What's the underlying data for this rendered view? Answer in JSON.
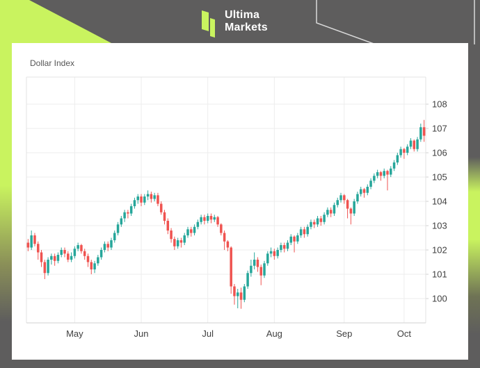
{
  "brand": {
    "line1": "Ultima",
    "line2": "Markets"
  },
  "colors": {
    "background": "#5e5d5d",
    "accent_lime": "#c9f35f",
    "outline": "#d9d9d9",
    "up": "#26a69a",
    "down": "#ef5350",
    "grid": "#ededed",
    "axis_line": "#d2d2d2",
    "label": "#3f3f3f"
  },
  "chart_data": {
    "type": "candlestick",
    "title": "Dollar Index",
    "ylabel": "",
    "xlabel": "",
    "ylim": [
      99.4,
      108.9
    ],
    "grid": true,
    "y_ticks": [
      100,
      101,
      102,
      103,
      104,
      105,
      106,
      107,
      108
    ],
    "x_months": [
      {
        "label": "May",
        "index": 14
      },
      {
        "label": "Jun",
        "index": 34
      },
      {
        "label": "Jul",
        "index": 54
      },
      {
        "label": "Aug",
        "index": 74
      },
      {
        "label": "Sep",
        "index": 95
      },
      {
        "label": "Oct",
        "index": 113
      }
    ],
    "candles_format": [
      "open",
      "high",
      "low",
      "close"
    ],
    "candles": [
      [
        102.3,
        102.45,
        101.95,
        102.1
      ],
      [
        102.1,
        102.8,
        102.0,
        102.6
      ],
      [
        102.6,
        102.7,
        102.15,
        102.25
      ],
      [
        102.25,
        102.35,
        101.6,
        101.9
      ],
      [
        101.9,
        102.0,
        101.3,
        101.5
      ],
      [
        101.5,
        101.6,
        100.8,
        101.05
      ],
      [
        101.05,
        101.7,
        100.95,
        101.6
      ],
      [
        101.6,
        101.85,
        101.4,
        101.75
      ],
      [
        101.75,
        101.85,
        101.35,
        101.55
      ],
      [
        101.55,
        101.9,
        101.45,
        101.8
      ],
      [
        101.8,
        102.1,
        101.7,
        102.0
      ],
      [
        102.0,
        102.1,
        101.7,
        101.85
      ],
      [
        101.85,
        101.95,
        101.5,
        101.6
      ],
      [
        101.6,
        101.9,
        101.5,
        101.75
      ],
      [
        101.75,
        102.15,
        101.65,
        102.05
      ],
      [
        102.05,
        102.3,
        101.95,
        102.2
      ],
      [
        102.2,
        102.25,
        101.85,
        101.95
      ],
      [
        101.95,
        102.05,
        101.6,
        101.75
      ],
      [
        101.75,
        101.85,
        101.3,
        101.5
      ],
      [
        101.5,
        101.6,
        101.0,
        101.2
      ],
      [
        101.2,
        101.55,
        101.05,
        101.45
      ],
      [
        101.45,
        101.8,
        101.35,
        101.7
      ],
      [
        101.7,
        102.1,
        101.6,
        102.0
      ],
      [
        102.0,
        102.35,
        101.9,
        102.25
      ],
      [
        102.25,
        102.35,
        101.95,
        102.1
      ],
      [
        102.1,
        102.5,
        102.0,
        102.4
      ],
      [
        102.4,
        102.8,
        102.3,
        102.7
      ],
      [
        102.7,
        103.15,
        102.6,
        103.05
      ],
      [
        103.05,
        103.4,
        102.95,
        103.3
      ],
      [
        103.3,
        103.65,
        103.15,
        103.55
      ],
      [
        103.55,
        103.65,
        103.3,
        103.5
      ],
      [
        103.5,
        103.9,
        103.4,
        103.8
      ],
      [
        103.8,
        104.15,
        103.7,
        104.05
      ],
      [
        104.05,
        104.3,
        103.9,
        104.2
      ],
      [
        104.2,
        104.3,
        103.8,
        103.95
      ],
      [
        103.95,
        104.3,
        103.85,
        104.2
      ],
      [
        104.2,
        104.45,
        104.05,
        104.3
      ],
      [
        104.3,
        104.4,
        103.95,
        104.1
      ],
      [
        104.1,
        104.35,
        104.0,
        104.25
      ],
      [
        104.25,
        104.35,
        103.8,
        103.9
      ],
      [
        103.9,
        104.0,
        103.45,
        103.55
      ],
      [
        103.55,
        103.65,
        103.05,
        103.2
      ],
      [
        103.2,
        103.3,
        102.65,
        102.8
      ],
      [
        102.8,
        102.9,
        102.3,
        102.45
      ],
      [
        102.45,
        102.55,
        102.0,
        102.15
      ],
      [
        102.15,
        102.5,
        102.05,
        102.4
      ],
      [
        102.4,
        102.5,
        102.1,
        102.3
      ],
      [
        102.3,
        102.7,
        102.2,
        102.6
      ],
      [
        102.6,
        102.95,
        102.5,
        102.85
      ],
      [
        102.85,
        102.95,
        102.55,
        102.7
      ],
      [
        102.7,
        103.05,
        102.6,
        102.95
      ],
      [
        102.95,
        103.25,
        102.85,
        103.15
      ],
      [
        103.15,
        103.45,
        103.05,
        103.35
      ],
      [
        103.35,
        103.45,
        103.05,
        103.2
      ],
      [
        103.2,
        103.5,
        103.1,
        103.4
      ],
      [
        103.4,
        103.5,
        103.1,
        103.25
      ],
      [
        103.25,
        103.45,
        103.15,
        103.35
      ],
      [
        103.35,
        103.4,
        102.95,
        103.05
      ],
      [
        103.05,
        103.1,
        102.6,
        102.7
      ],
      [
        102.7,
        102.8,
        102.0,
        102.35
      ],
      [
        102.35,
        102.4,
        101.95,
        102.1
      ],
      [
        102.1,
        102.15,
        100.2,
        100.5
      ],
      [
        100.5,
        100.6,
        99.75,
        100.1
      ],
      [
        100.1,
        100.4,
        99.6,
        100.25
      ],
      [
        100.25,
        100.45,
        99.58,
        99.95
      ],
      [
        99.95,
        100.6,
        99.85,
        100.5
      ],
      [
        100.5,
        101.15,
        100.4,
        101.05
      ],
      [
        101.05,
        101.6,
        100.9,
        101.35
      ],
      [
        101.35,
        101.9,
        101.2,
        101.6
      ],
      [
        101.6,
        101.7,
        101.1,
        101.3
      ],
      [
        101.3,
        101.4,
        100.55,
        100.95
      ],
      [
        100.95,
        101.55,
        100.85,
        101.45
      ],
      [
        101.45,
        101.95,
        101.35,
        101.85
      ],
      [
        101.85,
        102.1,
        101.7,
        101.95
      ],
      [
        101.95,
        102.05,
        101.6,
        101.75
      ],
      [
        101.75,
        102.1,
        101.65,
        102.0
      ],
      [
        102.0,
        102.3,
        101.9,
        102.2
      ],
      [
        102.2,
        102.3,
        101.9,
        102.05
      ],
      [
        102.05,
        102.4,
        101.95,
        102.3
      ],
      [
        102.3,
        102.65,
        102.2,
        102.55
      ],
      [
        102.55,
        102.6,
        101.9,
        102.35
      ],
      [
        102.35,
        102.7,
        102.25,
        102.6
      ],
      [
        102.6,
        102.95,
        102.5,
        102.85
      ],
      [
        102.85,
        102.95,
        102.5,
        102.65
      ],
      [
        102.65,
        103.05,
        102.55,
        102.95
      ],
      [
        102.95,
        103.25,
        102.85,
        103.15
      ],
      [
        103.15,
        103.25,
        102.9,
        103.05
      ],
      [
        103.05,
        103.4,
        102.95,
        103.3
      ],
      [
        103.3,
        103.4,
        103.0,
        103.15
      ],
      [
        103.15,
        103.55,
        103.05,
        103.45
      ],
      [
        103.45,
        103.75,
        103.35,
        103.65
      ],
      [
        103.65,
        103.75,
        103.35,
        103.5
      ],
      [
        103.5,
        103.95,
        103.4,
        103.85
      ],
      [
        103.85,
        104.15,
        103.75,
        104.05
      ],
      [
        104.05,
        104.35,
        103.95,
        104.25
      ],
      [
        104.25,
        104.3,
        103.9,
        104.05
      ],
      [
        104.05,
        104.1,
        103.3,
        103.7
      ],
      [
        103.7,
        103.75,
        103.05,
        103.5
      ],
      [
        103.5,
        104.1,
        103.4,
        104.0
      ],
      [
        104.0,
        104.4,
        103.9,
        104.3
      ],
      [
        104.3,
        104.6,
        104.2,
        104.5
      ],
      [
        104.5,
        104.55,
        104.15,
        104.35
      ],
      [
        104.35,
        104.7,
        104.25,
        104.6
      ],
      [
        104.6,
        104.95,
        104.5,
        104.85
      ],
      [
        104.85,
        105.15,
        104.75,
        105.05
      ],
      [
        105.05,
        105.3,
        104.95,
        105.2
      ],
      [
        105.2,
        105.25,
        104.85,
        105.05
      ],
      [
        105.05,
        105.35,
        104.95,
        105.25
      ],
      [
        105.25,
        105.3,
        104.45,
        105.1
      ],
      [
        105.1,
        105.45,
        105.0,
        105.35
      ],
      [
        105.35,
        105.7,
        105.25,
        105.6
      ],
      [
        105.6,
        106.0,
        105.5,
        105.9
      ],
      [
        105.9,
        106.25,
        105.8,
        106.15
      ],
      [
        106.15,
        106.2,
        105.75,
        106.0
      ],
      [
        106.0,
        106.35,
        105.9,
        106.25
      ],
      [
        106.25,
        106.6,
        106.15,
        106.5
      ],
      [
        106.5,
        106.55,
        106.05,
        106.15
      ],
      [
        106.15,
        106.65,
        106.05,
        106.55
      ],
      [
        106.55,
        107.2,
        106.45,
        107.05
      ],
      [
        107.05,
        107.35,
        106.45,
        106.7
      ]
    ]
  }
}
